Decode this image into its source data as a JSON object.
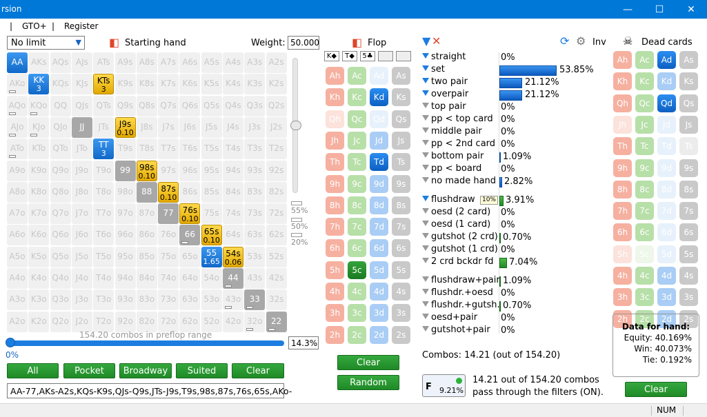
{
  "window": {
    "title": "rsion",
    "minimize": "—",
    "maximize": "☐",
    "close": "✕"
  },
  "menu": {
    "sep1": "|",
    "gto": "GTO+",
    "sep2": "|",
    "register": "Register"
  },
  "range_panel": {
    "game_type": "No limit",
    "starting_hand_label": "Starting hand",
    "weight_label": "Weight:",
    "weight_value": "50.000",
    "slider_pcts": [
      "55%",
      "50%",
      "20%"
    ],
    "combos_info": "154.20 combos in preflop range",
    "range_pct": "14.3%",
    "slider_zero": "0%",
    "slider_level": 1.0,
    "buttons": [
      "All",
      "Pocket",
      "Broadway",
      "Suited",
      "Clear"
    ],
    "range_text": "AA-77,AKs-A2s,KQs-K9s,QJs-Q9s,JTs-J9s,T9s,98s,87s,76s,65s,AKo-"
  },
  "grid": [
    [
      {
        "t": "AA",
        "s": "blue"
      },
      {
        "t": "AKs"
      },
      {
        "t": "AQs"
      },
      {
        "t": "AJs"
      },
      {
        "t": "ATs"
      },
      {
        "t": "A9s"
      },
      {
        "t": "A8s"
      },
      {
        "t": "A7s"
      },
      {
        "t": "A6s"
      },
      {
        "t": "A5s"
      },
      {
        "t": "A4s"
      },
      {
        "t": "A3s"
      },
      {
        "t": "A2s"
      }
    ],
    [
      {
        "t": "AKo",
        "b": 1
      },
      {
        "t": "KK",
        "w": "3",
        "s": "blue"
      },
      {
        "t": "KQs"
      },
      {
        "t": "KJs"
      },
      {
        "t": "KTs",
        "w": "3",
        "s": "yellow"
      },
      {
        "t": "K9s"
      },
      {
        "t": "K8s"
      },
      {
        "t": "K7s"
      },
      {
        "t": "K6s"
      },
      {
        "t": "K5s"
      },
      {
        "t": "K4s"
      },
      {
        "t": "K3s"
      },
      {
        "t": "K2s"
      }
    ],
    [
      {
        "t": "AQo",
        "b": 1
      },
      {
        "t": "KQo",
        "b": 1
      },
      {
        "t": "QQ"
      },
      {
        "t": "QJs"
      },
      {
        "t": "QTs"
      },
      {
        "t": "Q9s"
      },
      {
        "t": "Q8s"
      },
      {
        "t": "Q7s"
      },
      {
        "t": "Q6s"
      },
      {
        "t": "Q5s"
      },
      {
        "t": "Q4s"
      },
      {
        "t": "Q3s"
      },
      {
        "t": "Q2s"
      }
    ],
    [
      {
        "t": "AJo",
        "b": 1
      },
      {
        "t": "KJo",
        "b": 1
      },
      {
        "t": "QJo"
      },
      {
        "t": "JJ",
        "s": "gray"
      },
      {
        "t": "JTs"
      },
      {
        "t": "J9s",
        "w": "0.10",
        "s": "yellow"
      },
      {
        "t": "J8s"
      },
      {
        "t": "J7s"
      },
      {
        "t": "J6s"
      },
      {
        "t": "J5s"
      },
      {
        "t": "J4s"
      },
      {
        "t": "J3s"
      },
      {
        "t": "J2s"
      }
    ],
    [
      {
        "t": "ATo",
        "b": 1
      },
      {
        "t": "KTo"
      },
      {
        "t": "QTo"
      },
      {
        "t": "JTo"
      },
      {
        "t": "TT",
        "w": "3",
        "s": "blue"
      },
      {
        "t": "T9s"
      },
      {
        "t": "T8s"
      },
      {
        "t": "T7s"
      },
      {
        "t": "T6s"
      },
      {
        "t": "T5s"
      },
      {
        "t": "T4s"
      },
      {
        "t": "T3s"
      },
      {
        "t": "T2s"
      }
    ],
    [
      {
        "t": "A9o"
      },
      {
        "t": "K9o"
      },
      {
        "t": "Q9o"
      },
      {
        "t": "J9o"
      },
      {
        "t": "T9o"
      },
      {
        "t": "99",
        "s": "gray"
      },
      {
        "t": "98s",
        "w": "0.10",
        "s": "yellow"
      },
      {
        "t": "97s"
      },
      {
        "t": "96s"
      },
      {
        "t": "95s"
      },
      {
        "t": "94s"
      },
      {
        "t": "93s"
      },
      {
        "t": "92s"
      }
    ],
    [
      {
        "t": "A8o"
      },
      {
        "t": "K8o"
      },
      {
        "t": "Q8o"
      },
      {
        "t": "J8o"
      },
      {
        "t": "T8o"
      },
      {
        "t": "98o"
      },
      {
        "t": "88",
        "s": "gray"
      },
      {
        "t": "87s",
        "w": "0.10",
        "s": "yellow"
      },
      {
        "t": "86s"
      },
      {
        "t": "85s"
      },
      {
        "t": "84s"
      },
      {
        "t": "83s"
      },
      {
        "t": "82s"
      }
    ],
    [
      {
        "t": "A7o"
      },
      {
        "t": "K7o"
      },
      {
        "t": "Q7o"
      },
      {
        "t": "J7o"
      },
      {
        "t": "T7o"
      },
      {
        "t": "97o"
      },
      {
        "t": "87o"
      },
      {
        "t": "77",
        "s": "gray"
      },
      {
        "t": "76s",
        "w": "0.10",
        "s": "yellow"
      },
      {
        "t": "75s"
      },
      {
        "t": "74s"
      },
      {
        "t": "73s"
      },
      {
        "t": "72s"
      }
    ],
    [
      {
        "t": "A6o"
      },
      {
        "t": "K6o"
      },
      {
        "t": "Q6o"
      },
      {
        "t": "J6o"
      },
      {
        "t": "T6o"
      },
      {
        "t": "96o"
      },
      {
        "t": "86o"
      },
      {
        "t": "76o"
      },
      {
        "t": "66",
        "s": "gray",
        "b": 1
      },
      {
        "t": "65s",
        "w": "0.10",
        "s": "yellow"
      },
      {
        "t": "64s"
      },
      {
        "t": "63s"
      },
      {
        "t": "62s"
      }
    ],
    [
      {
        "t": "A5o"
      },
      {
        "t": "K5o"
      },
      {
        "t": "Q5o"
      },
      {
        "t": "J5o"
      },
      {
        "t": "T5o"
      },
      {
        "t": "95o"
      },
      {
        "t": "85o"
      },
      {
        "t": "75o"
      },
      {
        "t": "65o"
      },
      {
        "t": "55",
        "w": "1.65",
        "s": "blue"
      },
      {
        "t": "54s",
        "w": "0.06",
        "s": "yellow"
      },
      {
        "t": "53s"
      },
      {
        "t": "52s"
      }
    ],
    [
      {
        "t": "A4o"
      },
      {
        "t": "K4o"
      },
      {
        "t": "Q4o"
      },
      {
        "t": "J4o"
      },
      {
        "t": "T4o"
      },
      {
        "t": "94o"
      },
      {
        "t": "84o"
      },
      {
        "t": "74o"
      },
      {
        "t": "64o"
      },
      {
        "t": "54o"
      },
      {
        "t": "44",
        "s": "gray",
        "b": 1
      },
      {
        "t": "43s"
      },
      {
        "t": "42s"
      }
    ],
    [
      {
        "t": "A3o"
      },
      {
        "t": "K3o"
      },
      {
        "t": "Q3o"
      },
      {
        "t": "J3o"
      },
      {
        "t": "T3o"
      },
      {
        "t": "93o"
      },
      {
        "t": "83o"
      },
      {
        "t": "73o"
      },
      {
        "t": "63o"
      },
      {
        "t": "53o"
      },
      {
        "t": "43o",
        "b": 1
      },
      {
        "t": "33",
        "s": "gray",
        "b": 1
      },
      {
        "t": "32s"
      }
    ],
    [
      {
        "t": "A2o"
      },
      {
        "t": "K2o"
      },
      {
        "t": "Q2o"
      },
      {
        "t": "J2o"
      },
      {
        "t": "T2o"
      },
      {
        "t": "92o"
      },
      {
        "t": "82o"
      },
      {
        "t": "72o"
      },
      {
        "t": "62o"
      },
      {
        "t": "52o"
      },
      {
        "t": "42o"
      },
      {
        "t": "32o",
        "b": 1
      },
      {
        "t": "22",
        "s": "gray",
        "b": 1
      }
    ]
  ],
  "flop": {
    "label": "Flop",
    "board": [
      "K◆",
      "T◆",
      "5♣",
      "",
      ""
    ],
    "clear": "Clear",
    "random": "Random",
    "ranks": [
      "A",
      "K",
      "Q",
      "J",
      "T",
      "9",
      "8",
      "7",
      "6",
      "5",
      "4",
      "3",
      "2"
    ],
    "suits": [
      "h",
      "c",
      "d",
      "s"
    ],
    "selected": [
      "Kd",
      "Td",
      "5c"
    ],
    "faint": [
      "Ad",
      "Qd",
      "Qh"
    ]
  },
  "filters": {
    "made": [
      {
        "name": "straight",
        "val": "0%",
        "pct": 0,
        "on": true
      },
      {
        "name": "set",
        "val": "53.85%",
        "pct": 53.85,
        "on": true
      },
      {
        "name": "two pair",
        "val": "21.12%",
        "pct": 21.12,
        "on": true
      },
      {
        "name": "overpair",
        "val": "21.12%",
        "pct": 21.12,
        "on": true
      },
      {
        "name": "top pair",
        "val": "0%",
        "pct": 0,
        "on": false
      },
      {
        "name": "pp < top card",
        "val": "0%",
        "pct": 0,
        "on": false
      },
      {
        "name": "middle pair",
        "val": "0%",
        "pct": 0,
        "on": false
      },
      {
        "name": "pp < 2nd card",
        "val": "0%",
        "pct": 0,
        "on": false
      },
      {
        "name": "bottom pair",
        "val": "1.09%",
        "pct": 1.09,
        "on": false
      },
      {
        "name": "pp < board",
        "val": "0%",
        "pct": 0,
        "on": false
      },
      {
        "name": "no made hand",
        "val": "2.82%",
        "pct": 2.82,
        "on": false
      }
    ],
    "draws": [
      {
        "name": "flushdraw",
        "val": "3.91%",
        "pct": 3.91,
        "on": true
      },
      {
        "name": "oesd (2 card)",
        "val": "0%",
        "pct": 0,
        "on": false
      },
      {
        "name": "oesd (1 card)",
        "val": "0%",
        "pct": 0,
        "on": false
      },
      {
        "name": "gutshot (2 crd)",
        "val": "0.70%",
        "pct": 0.7,
        "on": false
      },
      {
        "name": "gutshot (1 crd)",
        "val": "0%",
        "pct": 0,
        "on": false
      },
      {
        "name": "2 crd bckdr fd",
        "val": "7.04%",
        "pct": 7.04,
        "on": false
      }
    ],
    "combos": [
      {
        "name": "flushdraw+pair",
        "val": "1.09%",
        "pct": 1.09,
        "on": false
      },
      {
        "name": "flushdr.+oesd",
        "val": "0%",
        "pct": 0,
        "on": false
      },
      {
        "name": "flushdr.+gutsh.",
        "val": "0.70%",
        "pct": 0.7,
        "on": false
      },
      {
        "name": "oesd+pair",
        "val": "0%",
        "pct": 0,
        "on": false
      },
      {
        "name": "gutshot+pair",
        "val": "0%",
        "pct": 0,
        "on": false
      }
    ],
    "flushdraw_sub": "10%",
    "combos_summary": "Combos: 14.21 (out of 154.20)",
    "badge_letter": "F",
    "badge_pct": "9.21%",
    "pass_line1": "14.21 out of 154.20 combos",
    "pass_line2": "pass through the filters (ON).",
    "inv_label": "Inv"
  },
  "dead": {
    "label": "Dead cards",
    "selected": [
      "Ad",
      "Qd"
    ],
    "faint": [
      "Jd",
      "Td",
      "9d",
      "8d",
      "7d",
      "6d",
      "5h",
      "5d",
      "5c",
      "Ts",
      "Jh"
    ],
    "data_title": "Data for hand:",
    "equity": "Equity: 40.169%",
    "win": "Win: 40.073%",
    "tie": "Tie: 0.192%",
    "clear": "Clear"
  },
  "status": {
    "num": "NUM"
  },
  "colors": {
    "accent": "#0078d7",
    "blue_cell": "#1c7de0",
    "yellow_cell": "#ffd94a",
    "green_btn": "#2a9a32"
  }
}
